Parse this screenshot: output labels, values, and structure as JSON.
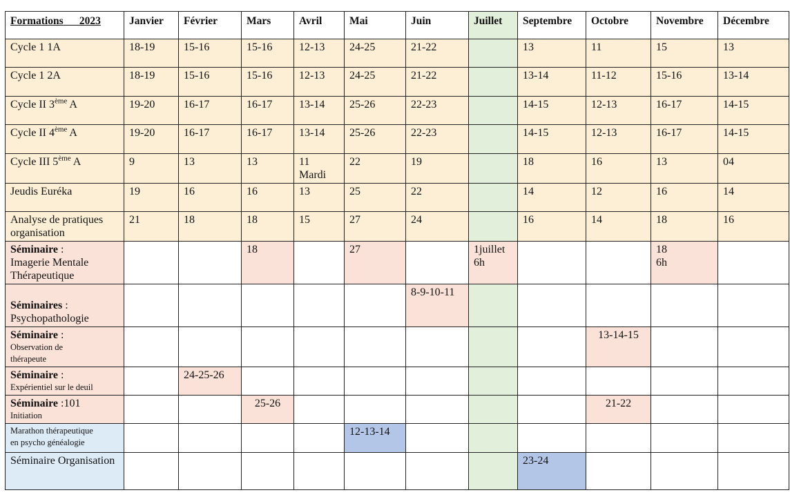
{
  "header": {
    "title": "Formations",
    "year": "2023",
    "months": [
      "Janvier",
      "Février",
      "Mars",
      "Avril",
      "Mai",
      "Juin",
      "Juillet",
      "Septembre",
      "Octobre",
      "Novembre",
      "Décembre"
    ]
  },
  "rows": {
    "c1_1a": {
      "label": "Cycle  1 1A",
      "cells": [
        "18-19",
        "15-16",
        "15-16",
        "12-13",
        "24-25",
        "21-22",
        "",
        "13",
        "11",
        "15",
        "13"
      ]
    },
    "c1_2a": {
      "label": "Cycle  1  2A",
      "cells": [
        "18-19",
        "15-16",
        "15-16",
        "12-13",
        "24-25",
        "21-22",
        "",
        "13-14",
        "11-12",
        "15-16",
        "13-14"
      ]
    },
    "c2_3a": {
      "label_pre": "Cycle  II  3",
      "label_sup": "ème",
      "label_post": " A",
      "cells": [
        "19-20",
        "16-17",
        "16-17",
        "13-14",
        "25-26",
        "22-23",
        "",
        "14-15",
        "12-13",
        "16-17",
        "14-15"
      ]
    },
    "c2_4a": {
      "label_pre": "Cycle II 4",
      "label_sup": "ème",
      "label_post": " A",
      "cells": [
        "19-20",
        "16-17",
        "16-17",
        "13-14",
        "25-26",
        "22-23",
        "",
        "14-15",
        "12-13",
        "16-17",
        "14-15"
      ]
    },
    "c3_5a": {
      "label_pre": "Cycle III  5",
      "label_sup": "ème",
      "label_post": " A",
      "cells": [
        "9",
        "13",
        "13",
        "11",
        "22",
        "19",
        "",
        "18",
        "16",
        "13",
        "04"
      ],
      "avril_note": "Mardi"
    },
    "jeudis": {
      "label": "Jeudis Euréka",
      "cells": [
        "19",
        "16",
        "16",
        "13",
        "25",
        "22",
        "",
        "14",
        "12",
        "16",
        "14"
      ]
    },
    "analyse": {
      "label_line1": "Analyse de pratiques",
      "label_line2": "organisation",
      "cells": [
        "21",
        "18",
        "18",
        "15",
        "27",
        "24",
        "",
        "16",
        "14",
        "18",
        "16"
      ]
    },
    "imagerie": {
      "label_bold": "Séminaire",
      "label_colon": " :",
      "label_line2": "Imagerie Mentale",
      "label_line3": "Thérapeutique",
      "mars": "18",
      "mai": "27",
      "juillet_1": "1juillet",
      "juillet_2": "6h",
      "novembre_1": "18",
      "novembre_2": "6h"
    },
    "psycho": {
      "label_bold": "Séminaires",
      "label_colon": " :",
      "label_line2": "Psychopathologie",
      "juin": "8-9-10-11"
    },
    "observation": {
      "label_bold": "Séminaire",
      "label_colon": " :",
      "label_line2": "Observation de",
      "label_line3": "thérapeute",
      "octobre": "13-14-15"
    },
    "deuil": {
      "label_bold": "Séminaire",
      "label_colon": " :",
      "label_line2": "Expérientiel sur le deuil",
      "fevrier": "24-25-26"
    },
    "s101": {
      "label_bold": "Séminaire",
      "label_rest": " :101",
      "label_line2": "Initiation",
      "mars": "25-26",
      "octobre": "21-22"
    },
    "marathon": {
      "label_line1": "Marathon thérapeutique",
      "label_line2": "en psycho généalogie",
      "mai": "12-13-14"
    },
    "organisation": {
      "label": "Séminaire Organisation",
      "septembre": "23-24"
    }
  },
  "colors": {
    "cycle_rows": "#fcefd5",
    "seminar_label": "#fbe2d8",
    "juillet_column": "#e2efda",
    "marathon_label": "#ddebf7",
    "marathon_date": "#b4c6e7"
  }
}
